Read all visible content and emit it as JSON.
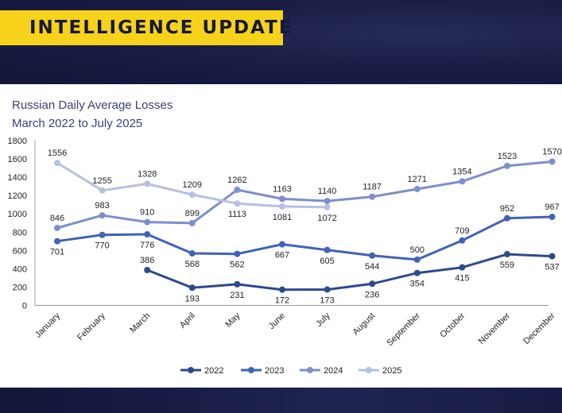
{
  "banner": {
    "title": "INTELLIGENCE UPDATE"
  },
  "chart_data": {
    "type": "line",
    "title": "Russian Daily Average Losses",
    "subtitle": "March 2022 to July 2025",
    "xlabel": "",
    "ylabel": "",
    "categories": [
      "January",
      "February",
      "March",
      "April",
      "May",
      "June",
      "July",
      "August",
      "September",
      "October",
      "November",
      "December"
    ],
    "ylim": [
      0,
      1800
    ],
    "yticks": [
      0,
      200,
      400,
      600,
      800,
      1000,
      1200,
      1400,
      1600,
      1800
    ],
    "grid": false,
    "legend_position": "bottom",
    "series": [
      {
        "name": "2022",
        "color": "#2e4a8c",
        "values": [
          null,
          null,
          386,
          193,
          231,
          172,
          173,
          236,
          354,
          415,
          559,
          537
        ]
      },
      {
        "name": "2023",
        "color": "#3f63b5",
        "values": [
          701,
          770,
          776,
          568,
          562,
          667,
          605,
          544,
          500,
          709,
          952,
          967
        ]
      },
      {
        "name": "2024",
        "color": "#7c8fcb",
        "values": [
          846,
          983,
          910,
          899,
          1262,
          1163,
          1140,
          1187,
          1271,
          1354,
          1523,
          1570
        ]
      },
      {
        "name": "2025",
        "color": "#b6c0e2",
        "values": [
          1556,
          1255,
          1328,
          1209,
          1113,
          1081,
          1072,
          null,
          null,
          null,
          null,
          null
        ]
      }
    ]
  }
}
